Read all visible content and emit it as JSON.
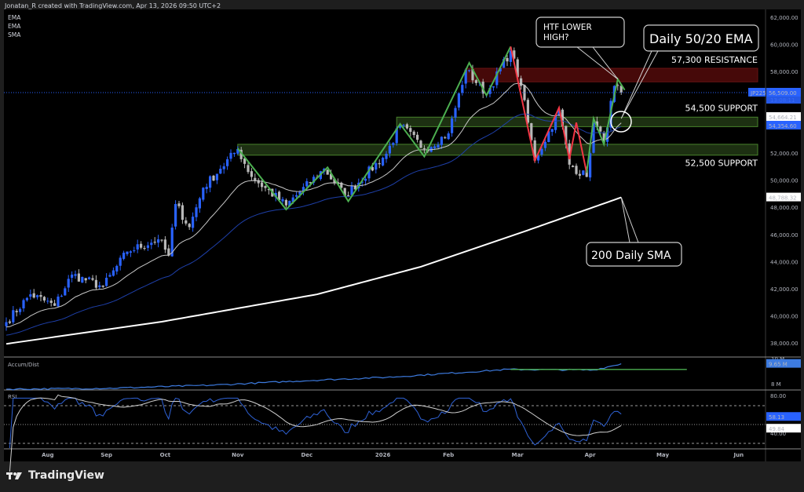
{
  "header": {
    "title": "Jonatan_R created with TradingView.com, Apr 13, 2026 09:50 UTC+2"
  },
  "legend": [
    "EMA",
    "EMA",
    "SMA"
  ],
  "footer": {
    "brand": "TradingView"
  },
  "colors": {
    "bull": "#2962ff",
    "bear": "#b8b8b8",
    "ema20": "#c8c8c8",
    "ema50": "#1e3fa8",
    "sma200": "#ffffff",
    "swing_up": "#4caf50",
    "swing_down": "#f23645",
    "resistance_zone": "#4a0a0a",
    "support_zone": "#1f3314"
  },
  "chart_data": {
    "type": "candlestick",
    "symbol_tag": "JP225",
    "last_price": "56,509.00",
    "countdown": "13:08:11",
    "ema20_value": "54,664.21",
    "ema50_value": "54,354.60",
    "sma200_value": "48,788.32",
    "price_ylim": [
      36500,
      63000
    ],
    "price_ticks": [
      "62,000.00",
      "60,000.00",
      "58,000.00",
      "52,000.00",
      "50,000.00",
      "48,000.00",
      "46,000.00",
      "44,000.00",
      "42,000.00",
      "40,000.00",
      "38,000.00"
    ],
    "price_tick_values": [
      62000,
      60000,
      58000,
      52000,
      50000,
      48000,
      46000,
      44000,
      42000,
      40000,
      38000
    ],
    "close_waypoints": [
      [
        0,
        39600
      ],
      [
        7,
        41650
      ],
      [
        14,
        40800
      ],
      [
        19,
        43100
      ],
      [
        28,
        42200
      ],
      [
        35,
        44800
      ],
      [
        44,
        45700
      ],
      [
        47,
        44500
      ],
      [
        49,
        48300
      ],
      [
        53,
        46600
      ],
      [
        57,
        49500
      ],
      [
        62,
        50900
      ],
      [
        67,
        52350
      ],
      [
        71,
        50300
      ],
      [
        81,
        48200
      ],
      [
        92,
        50900
      ],
      [
        98,
        48900
      ],
      [
        110,
        52000
      ],
      [
        114,
        54100
      ],
      [
        121,
        52350
      ],
      [
        128,
        53500
      ],
      [
        133,
        58200
      ],
      [
        139,
        56400
      ],
      [
        146,
        59600
      ],
      [
        149,
        57000
      ],
      [
        153,
        51500
      ],
      [
        160,
        55200
      ],
      [
        163,
        51200
      ],
      [
        168,
        50300
      ],
      [
        170,
        54300
      ],
      [
        173,
        52900
      ],
      [
        176,
        57000
      ],
      [
        178,
        56509
      ]
    ],
    "sma200_waypoints": [
      [
        0,
        38000
      ],
      [
        45,
        39630
      ],
      [
        90,
        41650
      ],
      [
        120,
        43680
      ],
      [
        150,
        46280
      ],
      [
        178,
        48788
      ]
    ],
    "swing_lines": {
      "up": [
        [
          67,
          52400
        ],
        [
          81,
          47900
        ],
        [
          93,
          51000
        ],
        [
          99,
          48500
        ],
        [
          114,
          54200
        ],
        [
          121,
          51800
        ],
        [
          134,
          58700
        ],
        [
          139,
          56300
        ],
        [
          146,
          59900
        ]
      ],
      "down": [
        [
          146,
          59900
        ],
        [
          153,
          51500
        ],
        [
          160,
          55400
        ],
        [
          163,
          51600
        ],
        [
          165,
          54300
        ],
        [
          168,
          50600
        ]
      ],
      "up2": [
        [
          168,
          50600
        ],
        [
          170,
          54600
        ],
        [
          173,
          52700
        ],
        [
          177,
          57500
        ],
        [
          179,
          56700
        ]
      ]
    },
    "zones": [
      {
        "label": "57,300 RESISTANCE",
        "kind": "resistance",
        "from": 57300,
        "to": 58300,
        "start": 133
      },
      {
        "label": "54,500 SUPPORT",
        "kind": "support",
        "from": 54000,
        "to": 54700,
        "start": 113
      },
      {
        "label": "52,500 SUPPORT",
        "kind": "support",
        "from": 51900,
        "to": 52700,
        "start": 67
      }
    ],
    "callouts": [
      {
        "text": [
          "HTF LOWER",
          "HIGH?"
        ],
        "target": [
          177,
          57500
        ]
      },
      {
        "text": [
          "Daily 50/20 EMA"
        ],
        "target": [
          178,
          54600
        ]
      },
      {
        "text": [
          "200 Daily SMA"
        ],
        "target": [
          178,
          48800
        ]
      }
    ],
    "time_labels": [
      [
        "Aug",
        12
      ],
      [
        "Sep",
        29
      ],
      [
        "Oct",
        46
      ],
      [
        "Nov",
        67
      ],
      [
        "Dec",
        87
      ],
      [
        "2026",
        109
      ],
      [
        "Feb",
        128
      ],
      [
        "Mar",
        148
      ],
      [
        "Apr",
        169
      ],
      [
        "May",
        190
      ],
      [
        "Jun",
        212
      ]
    ],
    "accum_dist": {
      "title": "Accum/Dist",
      "unit": "M",
      "waypoints": [
        [
          0,
          7.63
        ],
        [
          30,
          7.7
        ],
        [
          60,
          7.95
        ],
        [
          90,
          8.35
        ],
        [
          112,
          8.6
        ],
        [
          145,
          9.2
        ],
        [
          170,
          9.15
        ],
        [
          178,
          9.65
        ]
      ],
      "level": 9.2,
      "level_range": [
        146,
        197
      ],
      "ticks": [
        "10 M",
        "8 M"
      ],
      "tick_values": [
        10,
        8
      ],
      "last": "9.65 M"
    },
    "rsi": {
      "title": "RSI",
      "ticks": [
        "80.00",
        "40.00"
      ],
      "tick_values": [
        80,
        40
      ],
      "bands": [
        70,
        50,
        30
      ],
      "last": "58.13",
      "ma_last": "49.84"
    }
  }
}
